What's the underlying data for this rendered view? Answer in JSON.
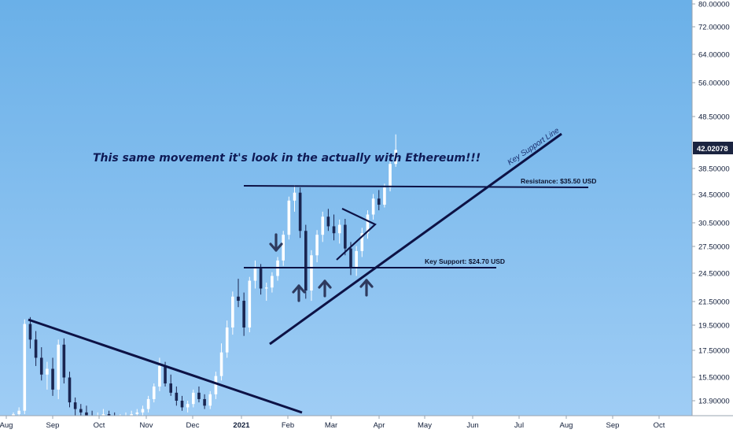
{
  "chart_data": {
    "type": "candlestick",
    "title": "",
    "price_axis": {
      "ticks": [
        "80.00000",
        "72.00000",
        "64.00000",
        "56.00000",
        "48.50000",
        "42.02078",
        "38.50000",
        "34.50000",
        "30.50000",
        "27.50000",
        "24.50000",
        "21.50000",
        "19.50000",
        "17.50000",
        "15.50000",
        "13.90000"
      ],
      "last_price": "42.02078",
      "last_price_color": "#1b2440",
      "scale": "log"
    },
    "time_axis": {
      "ticks": [
        "Aug",
        "Sep",
        "Oct",
        "Nov",
        "Dec",
        "2021",
        "Feb",
        "Mar",
        "Apr",
        "May",
        "Jun",
        "Jul",
        "Aug",
        "Sep",
        "Oct"
      ]
    },
    "annotations": {
      "headline": "This same movement it's look in the actually with Ethereum!!!",
      "resistance_label": "Resistance: $35.50 USD",
      "support_label": "Key Support: $24.70 USD",
      "trendline_label": "Key Support Line"
    },
    "levels": {
      "resistance": 35.5,
      "support": 24.7
    },
    "grid": false,
    "colors": {
      "background_top": "#6ab0e8",
      "background_bottom": "#9fcdf5",
      "candle_up": "#ffffff",
      "candle_down": "#1a2550",
      "line": "#0d1245"
    },
    "series": [
      {
        "values": [
          [
            13.0,
            13.2,
            12.8,
            13.1
          ],
          [
            13.1,
            13.5,
            12.9,
            13.3
          ],
          [
            13.3,
            19.9,
            13.1,
            19.5
          ],
          [
            19.5,
            20.1,
            17.5,
            18.2
          ],
          [
            18.2,
            18.9,
            16.2,
            16.8
          ],
          [
            16.8,
            17.6,
            15.2,
            15.6
          ],
          [
            15.6,
            16.5,
            14.6,
            16.0
          ],
          [
            16.0,
            16.8,
            14.2,
            14.6
          ],
          [
            14.6,
            18.2,
            14.0,
            17.8
          ],
          [
            17.8,
            18.3,
            15.0,
            15.4
          ],
          [
            15.4,
            15.8,
            13.5,
            13.8
          ],
          [
            13.8,
            14.1,
            13.0,
            13.4
          ],
          [
            13.4,
            13.7,
            12.9,
            13.2
          ],
          [
            13.2,
            13.6,
            12.8,
            13.0
          ],
          [
            13.0,
            13.3,
            12.7,
            12.9
          ],
          [
            12.9,
            13.2,
            12.6,
            13.0
          ],
          [
            13.0,
            13.4,
            12.8,
            13.1
          ],
          [
            13.1,
            13.3,
            12.9,
            13.0
          ],
          [
            13.0,
            13.2,
            12.7,
            12.8
          ],
          [
            12.8,
            13.1,
            12.6,
            12.9
          ],
          [
            12.9,
            13.2,
            12.7,
            13.0
          ],
          [
            13.0,
            13.3,
            12.8,
            13.1
          ],
          [
            13.1,
            13.4,
            12.9,
            13.2
          ],
          [
            13.2,
            13.6,
            13.0,
            13.4
          ],
          [
            13.4,
            14.2,
            13.2,
            14.0
          ],
          [
            14.0,
            15.0,
            13.8,
            14.8
          ],
          [
            14.8,
            16.8,
            14.5,
            16.2
          ],
          [
            16.2,
            16.5,
            14.8,
            15.0
          ],
          [
            15.0,
            15.6,
            14.2,
            14.4
          ],
          [
            14.4,
            14.8,
            13.6,
            13.9
          ],
          [
            13.9,
            14.2,
            13.3,
            13.5
          ],
          [
            13.5,
            13.9,
            13.2,
            13.7
          ],
          [
            13.7,
            14.6,
            13.5,
            14.4
          ],
          [
            14.4,
            14.8,
            13.8,
            14.0
          ],
          [
            14.0,
            14.3,
            13.4,
            13.6
          ],
          [
            13.6,
            14.5,
            13.4,
            14.3
          ],
          [
            14.3,
            15.8,
            14.0,
            15.5
          ],
          [
            15.5,
            17.9,
            15.2,
            17.2
          ],
          [
            17.2,
            19.8,
            16.8,
            19.2
          ],
          [
            19.2,
            22.5,
            18.6,
            22.0
          ],
          [
            22.0,
            23.8,
            21.0,
            21.6
          ],
          [
            21.6,
            22.4,
            18.5,
            19.2
          ],
          [
            19.2,
            24.0,
            18.8,
            23.6
          ],
          [
            23.6,
            25.8,
            22.8,
            24.9
          ],
          [
            24.9,
            25.4,
            22.2,
            22.8
          ],
          [
            22.8,
            23.4,
            21.6,
            22.9
          ],
          [
            22.9,
            24.5,
            22.4,
            24.1
          ],
          [
            24.1,
            26.2,
            23.6,
            25.8
          ],
          [
            25.8,
            29.4,
            25.2,
            28.9
          ],
          [
            28.9,
            34.2,
            28.3,
            33.6
          ],
          [
            33.6,
            36.0,
            32.0,
            34.8
          ],
          [
            34.8,
            35.6,
            28.5,
            29.4
          ],
          [
            29.4,
            30.2,
            21.8,
            22.6
          ],
          [
            22.6,
            27.0,
            21.6,
            26.4
          ],
          [
            26.4,
            29.5,
            25.6,
            28.9
          ],
          [
            28.9,
            32.0,
            28.0,
            31.3
          ],
          [
            31.3,
            32.4,
            29.4,
            30.0
          ],
          [
            30.0,
            31.6,
            28.2,
            29.1
          ],
          [
            29.1,
            30.9,
            27.8,
            30.2
          ],
          [
            30.2,
            31.0,
            26.4,
            27.2
          ],
          [
            27.2,
            28.0,
            24.2,
            25.0
          ],
          [
            25.0,
            27.5,
            24.1,
            26.9
          ],
          [
            26.9,
            29.8,
            26.2,
            29.1
          ],
          [
            29.1,
            32.2,
            28.4,
            31.6
          ],
          [
            31.6,
            34.6,
            30.9,
            33.9
          ],
          [
            33.9,
            35.2,
            32.2,
            33.0
          ],
          [
            33.0,
            36.2,
            32.6,
            35.6
          ],
          [
            35.6,
            40.2,
            35.0,
            39.5
          ],
          [
            39.5,
            45.0,
            39.0,
            42.02
          ]
        ]
      }
    ]
  }
}
